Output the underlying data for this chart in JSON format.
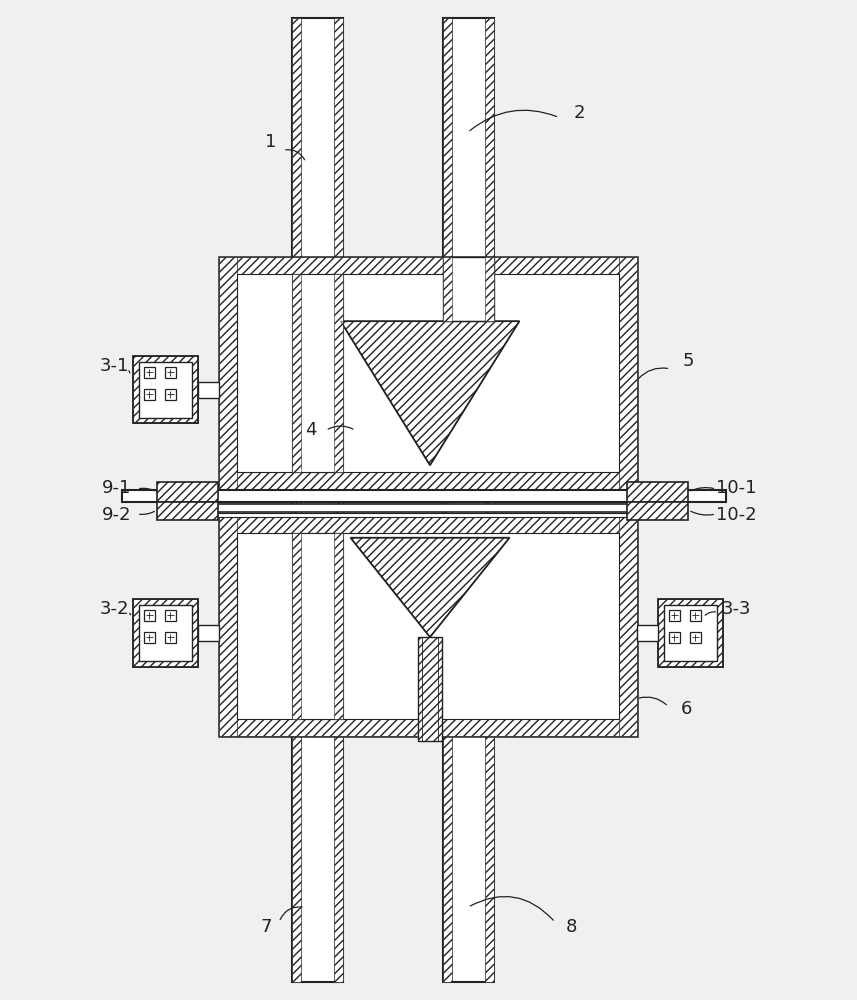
{
  "bg_color": "#f0f0f0",
  "line_color": "#222222",
  "fig_width": 8.57,
  "fig_height": 10.0,
  "label_fs": 13
}
